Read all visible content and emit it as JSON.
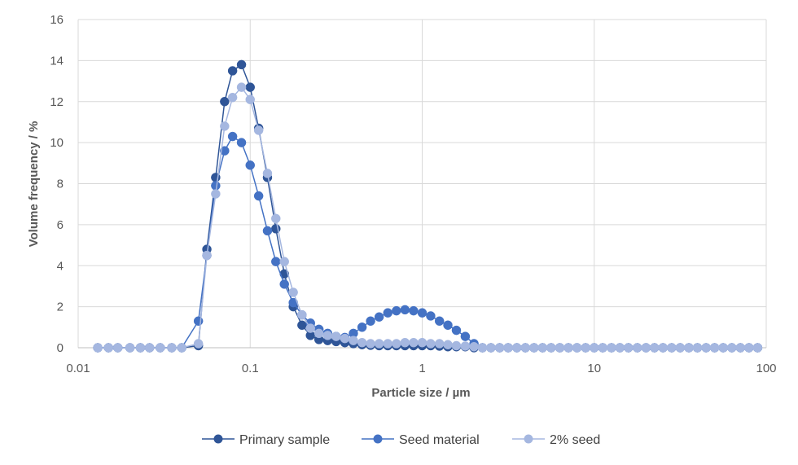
{
  "chart_data": {
    "type": "line",
    "title": "",
    "xlabel": "Particle size / µm",
    "ylabel": "Volume frequency / %",
    "x_scale": "log",
    "xlim": [
      0.01,
      100
    ],
    "ylim": [
      0,
      16
    ],
    "x_ticks": [
      "0.01",
      "0.1",
      "1",
      "10",
      "100"
    ],
    "y_ticks": [
      "0",
      "2",
      "4",
      "6",
      "8",
      "10",
      "12",
      "14",
      "16"
    ],
    "grid": true,
    "legend_position": "bottom",
    "series": [
      {
        "name": "Primary sample",
        "color": "#2f5597",
        "x": [
          0.013,
          0.015,
          0.017,
          0.02,
          0.023,
          0.026,
          0.03,
          0.035,
          0.04,
          0.05,
          0.056,
          0.063,
          0.071,
          0.079,
          0.089,
          0.1,
          0.112,
          0.126,
          0.141,
          0.158,
          0.178,
          0.2,
          0.224,
          0.251,
          0.282,
          0.316,
          0.355,
          0.398,
          0.447,
          0.501,
          0.562,
          0.631,
          0.708,
          0.794,
          0.891,
          1.0,
          1.12,
          1.26,
          1.41,
          1.58,
          1.78,
          2.0,
          2.24,
          2.51,
          2.82,
          3.16,
          3.55,
          3.98,
          4.47,
          5.01,
          5.62,
          6.31,
          7.08,
          7.94,
          8.91,
          10.0,
          11.2,
          12.6,
          14.1,
          15.8,
          17.8,
          20.0,
          22.4,
          25.1,
          28.2,
          31.6,
          35.5,
          39.8,
          44.7,
          50.1,
          56.2,
          63.1,
          70.8,
          79.4,
          89.1
        ],
        "y": [
          0,
          0,
          0,
          0,
          0,
          0,
          0,
          0,
          0,
          0.1,
          4.8,
          8.3,
          12.0,
          13.5,
          13.8,
          12.7,
          10.7,
          8.3,
          5.8,
          3.6,
          2.0,
          1.1,
          0.6,
          0.4,
          0.35,
          0.3,
          0.25,
          0.2,
          0.15,
          0.12,
          0.1,
          0.1,
          0.1,
          0.1,
          0.1,
          0.1,
          0.1,
          0.08,
          0.05,
          0.05,
          0.05,
          0,
          0,
          0,
          0,
          0,
          0,
          0,
          0,
          0,
          0,
          0,
          0,
          0,
          0,
          0,
          0,
          0,
          0,
          0,
          0,
          0,
          0,
          0,
          0,
          0,
          0,
          0,
          0,
          0,
          0,
          0,
          0,
          0,
          0
        ]
      },
      {
        "name": "Seed material",
        "color": "#4472c4",
        "x": [
          0.013,
          0.015,
          0.017,
          0.02,
          0.023,
          0.026,
          0.03,
          0.035,
          0.04,
          0.05,
          0.056,
          0.063,
          0.071,
          0.079,
          0.089,
          0.1,
          0.112,
          0.126,
          0.141,
          0.158,
          0.178,
          0.2,
          0.224,
          0.251,
          0.282,
          0.316,
          0.355,
          0.398,
          0.447,
          0.501,
          0.562,
          0.631,
          0.708,
          0.794,
          0.891,
          1.0,
          1.12,
          1.26,
          1.41,
          1.58,
          1.78,
          2.0,
          2.24,
          2.51,
          2.82,
          3.16,
          3.55,
          3.98,
          4.47,
          5.01,
          5.62,
          6.31,
          7.08,
          7.94,
          8.91,
          10.0,
          11.2,
          12.6,
          14.1,
          15.8,
          17.8,
          20.0,
          22.4,
          25.1,
          28.2,
          31.6,
          35.5,
          39.8,
          44.7,
          50.1,
          56.2,
          63.1,
          70.8,
          79.4,
          89.1
        ],
        "y": [
          0,
          0,
          0,
          0,
          0,
          0,
          0,
          0,
          0,
          1.3,
          4.5,
          7.9,
          9.6,
          10.3,
          10.0,
          8.9,
          7.4,
          5.7,
          4.2,
          3.1,
          2.2,
          1.6,
          1.2,
          0.9,
          0.7,
          0.55,
          0.5,
          0.7,
          1.0,
          1.3,
          1.5,
          1.7,
          1.8,
          1.85,
          1.8,
          1.7,
          1.55,
          1.3,
          1.1,
          0.85,
          0.55,
          0.2,
          0,
          0,
          0,
          0,
          0,
          0,
          0,
          0,
          0,
          0,
          0,
          0,
          0,
          0,
          0,
          0,
          0,
          0,
          0,
          0,
          0,
          0,
          0,
          0,
          0,
          0,
          0,
          0,
          0,
          0,
          0,
          0,
          0
        ]
      },
      {
        "name": "2% seed",
        "color": "#a5b7e0",
        "x": [
          0.013,
          0.015,
          0.017,
          0.02,
          0.023,
          0.026,
          0.03,
          0.035,
          0.04,
          0.05,
          0.056,
          0.063,
          0.071,
          0.079,
          0.089,
          0.1,
          0.112,
          0.126,
          0.141,
          0.158,
          0.178,
          0.2,
          0.224,
          0.251,
          0.282,
          0.316,
          0.355,
          0.398,
          0.447,
          0.501,
          0.562,
          0.631,
          0.708,
          0.794,
          0.891,
          1.0,
          1.12,
          1.26,
          1.41,
          1.58,
          1.78,
          2.0,
          2.24,
          2.51,
          2.82,
          3.16,
          3.55,
          3.98,
          4.47,
          5.01,
          5.62,
          6.31,
          7.08,
          7.94,
          8.91,
          10.0,
          11.2,
          12.6,
          14.1,
          15.8,
          17.8,
          20.0,
          22.4,
          25.1,
          28.2,
          31.6,
          35.5,
          39.8,
          44.7,
          50.1,
          56.2,
          63.1,
          70.8,
          79.4,
          89.1
        ],
        "y": [
          0,
          0,
          0,
          0,
          0,
          0,
          0,
          0,
          0,
          0.2,
          4.5,
          7.5,
          10.8,
          12.2,
          12.7,
          12.1,
          10.6,
          8.5,
          6.3,
          4.2,
          2.7,
          1.6,
          0.95,
          0.7,
          0.6,
          0.55,
          0.45,
          0.35,
          0.25,
          0.2,
          0.2,
          0.2,
          0.2,
          0.25,
          0.25,
          0.25,
          0.2,
          0.2,
          0.15,
          0.1,
          0.08,
          0.05,
          0,
          0,
          0,
          0,
          0,
          0,
          0,
          0,
          0,
          0,
          0,
          0,
          0,
          0,
          0,
          0,
          0,
          0,
          0,
          0,
          0,
          0,
          0,
          0,
          0,
          0,
          0,
          0,
          0,
          0,
          0,
          0,
          0
        ]
      }
    ]
  }
}
